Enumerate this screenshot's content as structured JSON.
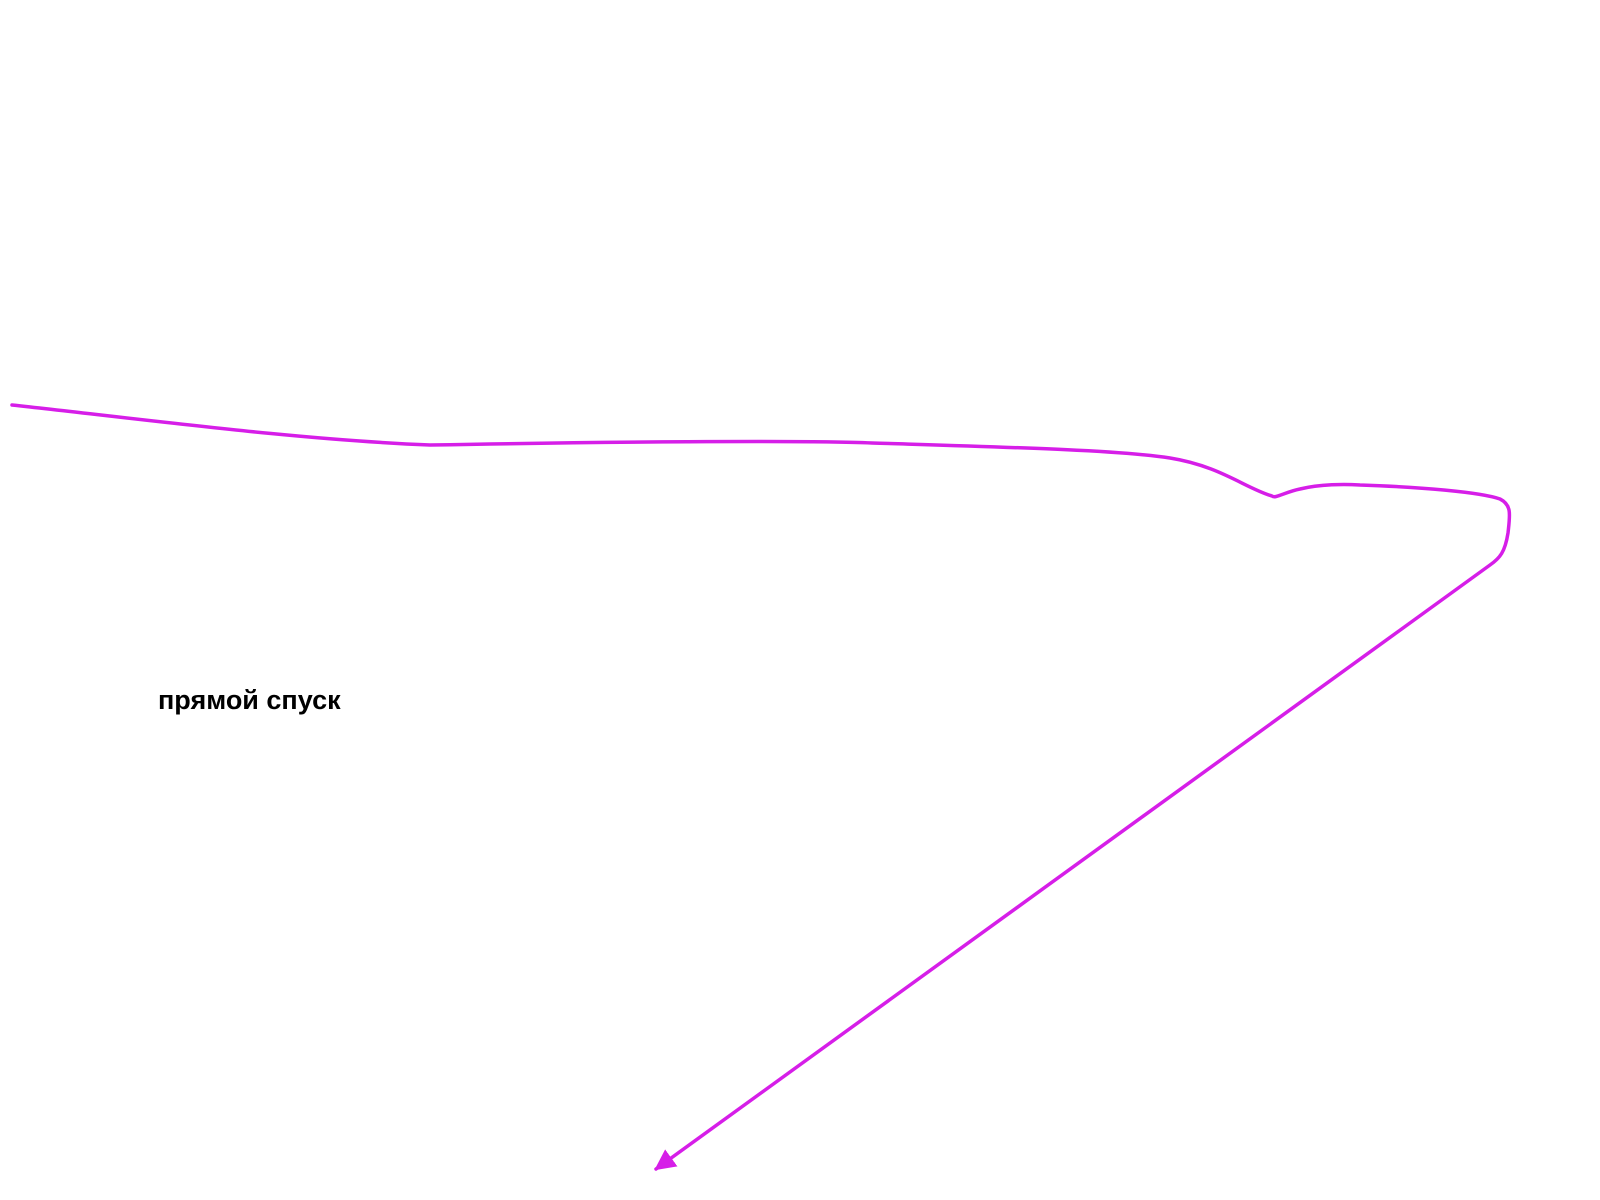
{
  "label": "прямой спуск"
}
